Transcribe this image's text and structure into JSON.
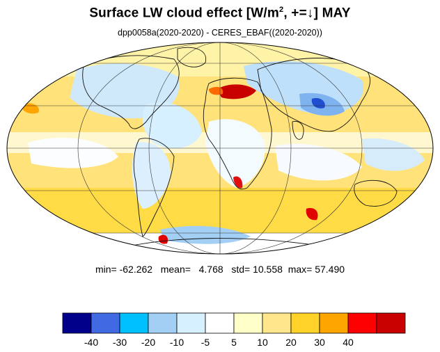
{
  "title": {
    "main": "Surface LW cloud effect [W/m",
    "sup": "2",
    "tail": ", +=↓]  MAY"
  },
  "subtitle": "dpp0058a(2020-2020) - CERES_EBAF((2020-2020))",
  "stats": {
    "min_label": "min=",
    "min": "-62.262",
    "mean_label": "mean=",
    "mean": "4.768",
    "std_label": "std=",
    "std": "10.558",
    "max_label": "max=",
    "max": "57.490"
  },
  "colorbar": {
    "colors": [
      "#00008b",
      "#4169e1",
      "#00bfff",
      "#a3cff5",
      "#d6f0ff",
      "#ffffff",
      "#ffffc8",
      "#ffe68c",
      "#ffd22a",
      "#ffa500",
      "#ff0000",
      "#c80000"
    ],
    "labels": [
      "-40",
      "-30",
      "-20",
      "-10",
      "-5",
      "5",
      "10",
      "20",
      "30",
      "40"
    ]
  }
}
